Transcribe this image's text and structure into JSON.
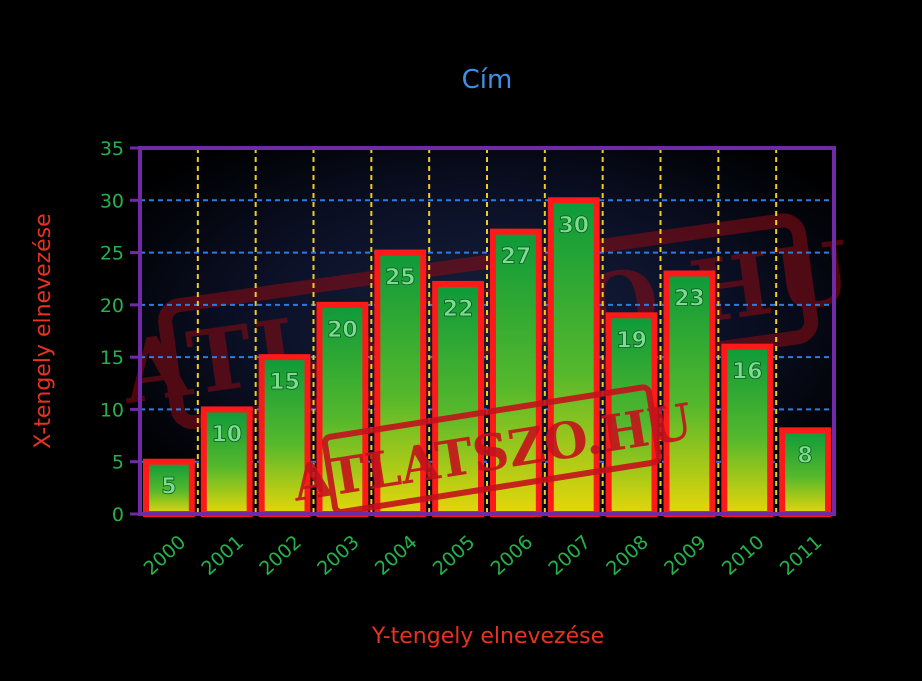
{
  "chart_data": {
    "type": "bar",
    "title": "Cím",
    "xlabel": "Y-tengely elnevezése",
    "ylabel": "X-tengely elnevezése",
    "categories": [
      "2000",
      "2001",
      "2002",
      "2003",
      "2004",
      "2005",
      "2006",
      "2007",
      "2008",
      "2009",
      "2010",
      "2011"
    ],
    "values": [
      5,
      10,
      15,
      20,
      25,
      22,
      27,
      30,
      19,
      23,
      16,
      8
    ],
    "ylim": [
      0,
      35
    ],
    "yticks": [
      0,
      5,
      10,
      15,
      20,
      25,
      30,
      35
    ],
    "grid": {
      "horizontal": true,
      "vertical": true
    },
    "legend": "none",
    "data_labels": true
  },
  "watermark": {
    "stamp_large": "ATLATSZO.HU",
    "stamp_small": "ATLATSZO.HU"
  },
  "colors": {
    "background": "#000000",
    "title": "#3d8fe8",
    "axis_label": "#e8321f",
    "tick_label": "#25b14b",
    "plot_frame": "#6f2aa8",
    "grid_horizontal": "#2f7be0",
    "grid_vertical": "#f0cc1c",
    "bar_border": "#ff1a1a",
    "bar_top": "#0d9a3a",
    "bar_bottom": "#e6d60a",
    "value_label": "#7ddc90",
    "stamp": "#c4121c"
  }
}
